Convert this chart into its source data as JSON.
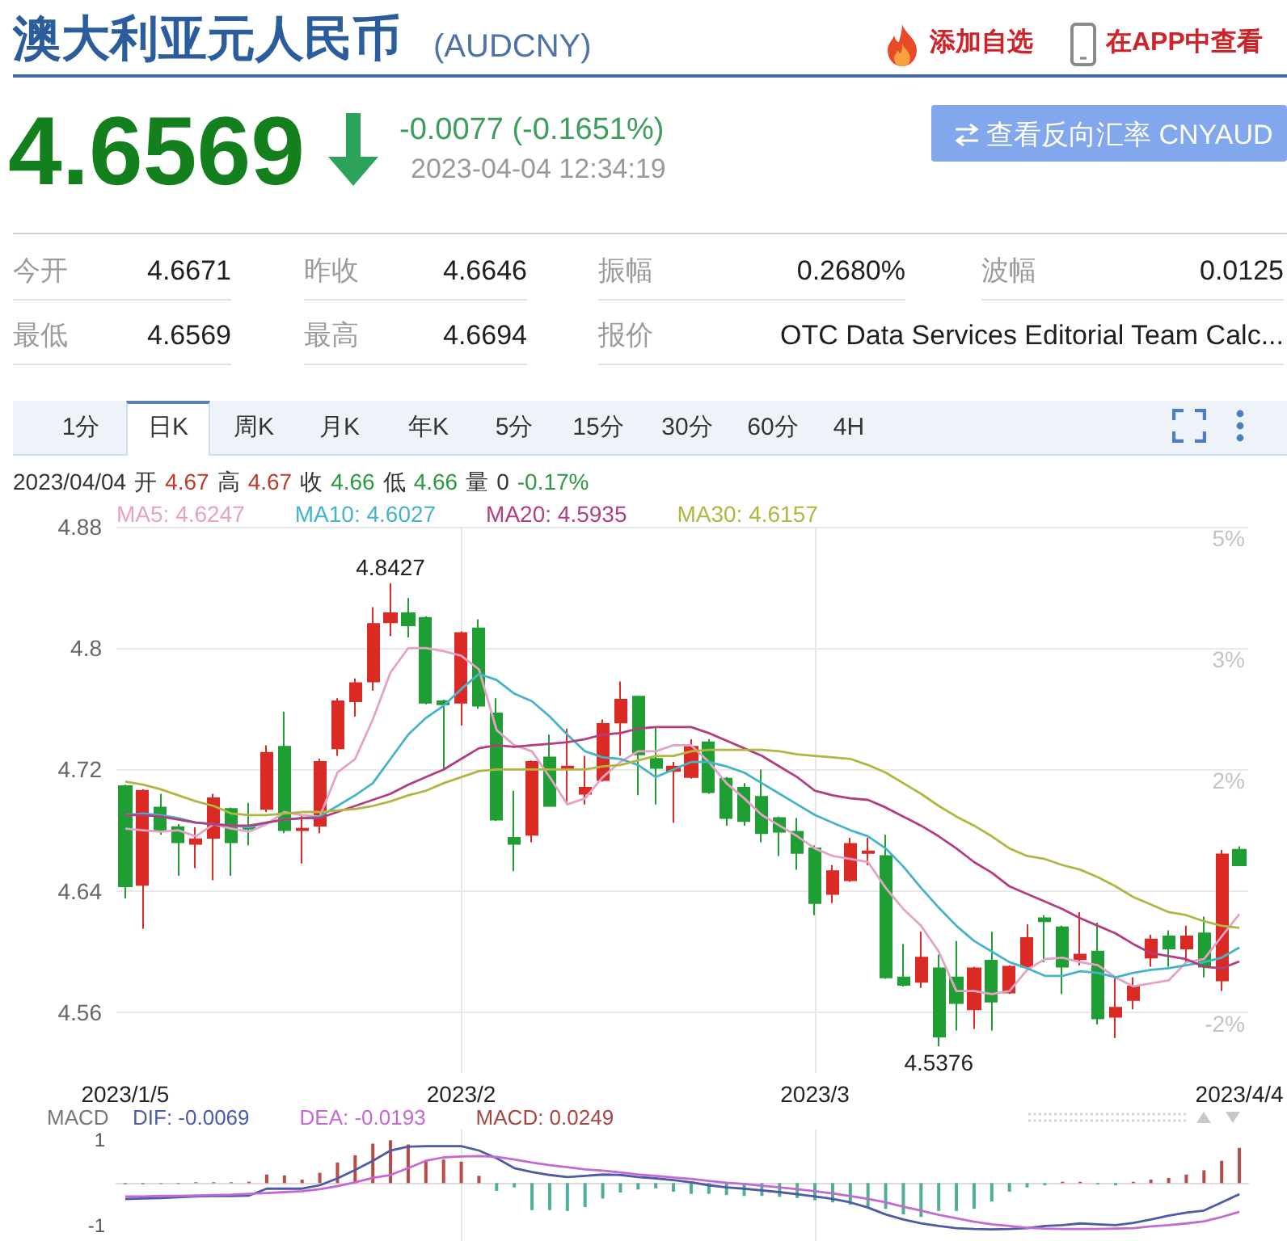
{
  "chart_data": [
    {
      "type": "other",
      "title": "澳大利亚元人民币",
      "subtitle": "(AUDCNY)",
      "annotations": [
        "添加自选",
        "在APP中查看",
        "4.6569",
        "-0.0077 (-0.1651%)",
        "2023-04-04 12:34:19",
        "查看反向汇率 CNYAUD",
        "今开",
        "4.6671",
        "昨收",
        "4.6646",
        "振幅",
        "0.2680%",
        "波幅",
        "0.0125",
        "最低",
        "4.6569",
        "最高",
        "4.6694",
        "报价",
        "OTC Data Services Editorial Team Calc...",
        "1分",
        "日K",
        "周K",
        "月K",
        "年K",
        "5分",
        "15分",
        "30分",
        "60分",
        "4H",
        "2023/04/04",
        "开",
        "4.67",
        "高",
        "4.67",
        "收",
        "4.66",
        "低",
        "4.66",
        "量",
        "0",
        "-0.17%"
      ]
    },
    {
      "type": "candlestick",
      "categories": [
        "2023/1/5",
        null,
        null,
        null,
        null,
        null,
        null,
        null,
        null,
        null,
        null,
        null,
        null,
        null,
        null,
        null,
        null,
        null,
        null,
        "2023/2",
        null,
        null,
        null,
        null,
        null,
        null,
        null,
        null,
        null,
        null,
        null,
        null,
        null,
        null,
        null,
        null,
        null,
        null,
        null,
        "2023/3",
        null,
        null,
        null,
        null,
        null,
        null,
        null,
        null,
        null,
        null,
        null,
        null,
        null,
        null,
        null,
        null,
        null,
        null,
        null,
        null,
        null,
        null,
        null,
        "2023/4/4"
      ],
      "ohlc": [
        [
          4.709,
          4.71,
          4.635,
          4.643
        ],
        [
          4.644,
          4.707,
          4.615,
          4.706
        ],
        [
          4.695,
          4.704,
          4.677,
          4.68
        ],
        [
          4.682,
          4.684,
          4.65,
          4.672
        ],
        [
          4.671,
          4.682,
          4.655,
          4.674
        ],
        [
          4.675,
          4.704,
          4.647,
          4.701
        ],
        [
          4.694,
          4.695,
          4.65,
          4.672
        ],
        [
          4.682,
          4.698,
          4.67,
          4.681
        ],
        [
          4.694,
          4.736,
          4.692,
          4.731
        ],
        [
          4.735,
          4.758,
          4.678,
          4.68
        ],
        [
          4.68,
          4.69,
          4.658,
          4.681
        ],
        [
          4.683,
          4.727,
          4.678,
          4.725
        ],
        [
          4.734,
          4.767,
          4.729,
          4.765
        ],
        [
          4.765,
          4.78,
          4.755,
          4.777
        ],
        [
          4.778,
          4.827,
          4.772,
          4.816
        ],
        [
          4.817,
          4.8427,
          4.808,
          4.823
        ],
        [
          4.823,
          4.833,
          4.807,
          4.815
        ],
        [
          4.82,
          4.821,
          4.763,
          4.764
        ],
        [
          4.765,
          4.766,
          4.72,
          4.763
        ],
        [
          4.764,
          4.811,
          4.749,
          4.81
        ],
        [
          4.813,
          4.819,
          4.76,
          4.762
        ],
        [
          4.757,
          4.767,
          4.686,
          4.687
        ],
        [
          4.675,
          4.706,
          4.653,
          4.671
        ],
        [
          4.677,
          4.726,
          4.672,
          4.725
        ],
        [
          4.728,
          4.743,
          4.696,
          4.696
        ],
        [
          4.721,
          4.747,
          4.698,
          4.722
        ],
        [
          4.704,
          4.729,
          4.697,
          4.708
        ],
        [
          4.713,
          4.753,
          4.712,
          4.75
        ],
        [
          4.751,
          4.778,
          4.729,
          4.766
        ],
        [
          4.768,
          4.768,
          4.703,
          4.73
        ],
        [
          4.727,
          4.748,
          4.697,
          4.721
        ],
        [
          4.719,
          4.725,
          4.685,
          4.722
        ],
        [
          4.715,
          4.74,
          4.714,
          4.735
        ],
        [
          4.738,
          4.74,
          4.704,
          4.705
        ],
        [
          4.714,
          4.715,
          4.683,
          4.688
        ],
        [
          4.708,
          4.711,
          4.683,
          4.686
        ],
        [
          4.702,
          4.72,
          4.672,
          4.678
        ],
        [
          4.688,
          4.689,
          4.663,
          4.679
        ],
        [
          4.679,
          4.688,
          4.654,
          4.665
        ],
        [
          4.668,
          4.67,
          4.624,
          4.632
        ],
        [
          4.638,
          4.657,
          4.632,
          4.653
        ],
        [
          4.647,
          4.675,
          4.646,
          4.671
        ],
        [
          4.665,
          4.675,
          4.657,
          4.666
        ],
        [
          4.663,
          4.677,
          4.582,
          4.583
        ],
        [
          4.583,
          4.605,
          4.577,
          4.578
        ],
        [
          4.58,
          4.613,
          4.576,
          4.596
        ],
        [
          4.589,
          4.598,
          4.5376,
          4.544
        ],
        [
          4.583,
          4.607,
          4.548,
          4.566
        ],
        [
          4.562,
          4.59,
          4.549,
          4.589
        ],
        [
          4.594,
          4.613,
          4.548,
          4.567
        ],
        [
          4.573,
          4.591,
          4.572,
          4.59
        ],
        [
          4.59,
          4.618,
          4.589,
          4.609
        ],
        [
          4.622,
          4.624,
          4.593,
          4.62
        ],
        [
          4.616,
          4.617,
          4.572,
          4.59
        ],
        [
          4.595,
          4.626,
          4.591,
          4.598
        ],
        [
          4.6,
          4.619,
          4.552,
          4.556
        ],
        [
          4.557,
          4.583,
          4.543,
          4.563
        ],
        [
          4.568,
          4.583,
          4.562,
          4.577
        ],
        [
          4.596,
          4.611,
          4.59,
          4.608
        ],
        [
          4.61,
          4.614,
          4.59,
          4.602
        ],
        [
          4.602,
          4.617,
          4.593,
          4.61
        ],
        [
          4.612,
          4.623,
          4.583,
          4.59
        ],
        [
          4.581,
          4.667,
          4.574,
          4.664
        ],
        [
          4.6671,
          4.6694,
          4.6569,
          4.6569
        ]
      ],
      "colors": [
        "#1f9f33",
        "#db2a23",
        "#1f9f33",
        "#1f9f33",
        "#db2a23",
        "#db2a23",
        "#1f9f33",
        "#1f9f33",
        "#db2a23",
        "#1f9f33",
        "#db2a23",
        "#db2a23",
        "#db2a23",
        "#db2a23",
        "#db2a23",
        "#db2a23",
        "#1f9f33",
        "#1f9f33",
        "#1f9f33",
        "#db2a23",
        "#1f9f33",
        "#1f9f33",
        "#1f9f33",
        "#db2a23",
        "#1f9f33",
        "#db2a23",
        "#db2a23",
        "#db2a23",
        "#db2a23",
        "#1f9f33",
        "#1f9f33",
        "#db2a23",
        "#db2a23",
        "#1f9f33",
        "#1f9f33",
        "#1f9f33",
        "#1f9f33",
        "#1f9f33",
        "#1f9f33",
        "#1f9f33",
        "#db2a23",
        "#db2a23",
        "#db2a23",
        "#1f9f33",
        "#1f9f33",
        "#db2a23",
        "#1f9f33",
        "#1f9f33",
        "#db2a23",
        "#1f9f33",
        "#db2a23",
        "#db2a23",
        "#1f9f33",
        "#1f9f33",
        "#db2a23",
        "#1f9f33",
        "#db2a23",
        "#db2a23",
        "#db2a23",
        "#1f9f33",
        "#db2a23",
        "#1f9f33",
        "#db2a23",
        "#1f9f33"
      ],
      "series": [
        {
          "type": "line",
          "name": "MA5: 4.6247",
          "color": "#e6a2c6",
          "values": [
            4.681,
            4.68,
            4.679,
            4.68,
            4.676,
            4.684,
            4.681,
            4.679,
            4.684,
            4.692,
            4.69,
            4.689,
            4.718,
            4.727,
            4.753,
            4.784,
            4.8,
            4.8,
            4.798,
            4.795,
            4.786,
            4.746,
            4.736,
            4.732,
            4.715,
            4.697,
            4.701,
            4.715,
            4.725,
            4.732,
            4.732,
            4.736,
            4.736,
            4.725,
            4.711,
            4.701,
            4.69,
            4.683,
            4.676,
            4.668,
            4.663,
            4.661,
            4.659,
            4.642,
            4.628,
            4.617,
            4.6,
            4.574,
            4.574,
            4.572,
            4.574,
            4.588,
            4.595,
            4.596,
            4.593,
            4.591,
            4.583,
            4.577,
            4.579,
            4.581,
            4.593,
            4.595,
            4.61,
            4.6247
          ]
        },
        {
          "type": "line",
          "name": "MA10: 4.6027",
          "color": "#45b3c9",
          "values": [
            4.69,
            4.691,
            4.69,
            4.688,
            4.685,
            4.684,
            4.683,
            4.682,
            4.685,
            4.687,
            4.688,
            4.689,
            4.696,
            4.703,
            4.711,
            4.727,
            4.743,
            4.754,
            4.762,
            4.773,
            4.783,
            4.779,
            4.77,
            4.765,
            4.755,
            4.743,
            4.732,
            4.728,
            4.727,
            4.723,
            4.715,
            4.72,
            4.725,
            4.725,
            4.722,
            4.718,
            4.711,
            4.704,
            4.697,
            4.69,
            4.685,
            4.68,
            4.676,
            4.668,
            4.656,
            4.642,
            4.629,
            4.617,
            4.607,
            4.6,
            4.593,
            4.589,
            4.584,
            4.584,
            4.587,
            4.586,
            4.583,
            4.586,
            4.588,
            4.589,
            4.591,
            4.593,
            4.596,
            4.6027
          ]
        },
        {
          "type": "line",
          "name": "MA20: 4.5935",
          "color": "#b33d80",
          "values": [
            4.69,
            4.69,
            4.689,
            4.687,
            4.685,
            4.684,
            4.683,
            4.683,
            4.685,
            4.687,
            4.688,
            4.688,
            4.692,
            4.696,
            4.7,
            4.704,
            4.71,
            4.715,
            4.72,
            4.727,
            4.734,
            4.736,
            4.735,
            4.736,
            4.737,
            4.738,
            4.74,
            4.743,
            4.744,
            4.747,
            4.748,
            4.748,
            4.748,
            4.744,
            4.739,
            4.734,
            4.729,
            4.722,
            4.715,
            4.706,
            4.703,
            4.701,
            4.7,
            4.695,
            4.689,
            4.683,
            4.676,
            4.668,
            4.659,
            4.652,
            4.643,
            4.638,
            4.633,
            4.628,
            4.622,
            4.617,
            4.612,
            4.605,
            4.599,
            4.597,
            4.595,
            4.59,
            4.589,
            4.5935
          ]
        },
        {
          "type": "line",
          "name": "MA30: 4.6157",
          "color": "#b1b640",
          "values": [
            4.712,
            4.71,
            4.707,
            4.703,
            4.699,
            4.696,
            4.691,
            4.69,
            4.69,
            4.691,
            4.692,
            4.692,
            4.693,
            4.694,
            4.696,
            4.699,
            4.703,
            4.706,
            4.711,
            4.715,
            4.719,
            4.72,
            4.72,
            4.72,
            4.72,
            4.72,
            4.72,
            4.722,
            4.723,
            4.726,
            4.729,
            4.729,
            4.732,
            4.733,
            4.733,
            4.733,
            4.733,
            4.732,
            4.73,
            4.729,
            4.728,
            4.727,
            4.723,
            4.718,
            4.711,
            4.704,
            4.696,
            4.689,
            4.683,
            4.676,
            4.668,
            4.663,
            4.661,
            4.657,
            4.654,
            4.649,
            4.643,
            4.636,
            4.631,
            4.626,
            4.624,
            4.62,
            4.617,
            4.6157
          ]
        }
      ],
      "ylim": [
        4.52,
        4.88
      ],
      "yticks": [
        4.56,
        4.64,
        4.72,
        4.8,
        4.88
      ],
      "y2lim": [
        -2.69,
        5.06
      ],
      "y2ticks": [
        {
          "value": -1.83,
          "label": "-2%"
        },
        {
          "value": -0.11,
          "label": null
        },
        {
          "value": 1.62,
          "label": "2%"
        },
        {
          "value": 3.34,
          "label": "3%"
        },
        {
          "value": 5.06,
          "label": "5%"
        }
      ],
      "grid": true,
      "legend": "top left",
      "marker": "none",
      "tick_labels": "y",
      "annotations": [
        "4.8427",
        "4.5376"
      ]
    },
    {
      "type": "bar",
      "title": "MACD",
      "categories": [
        "2023/1/5",
        null,
        null,
        null,
        null,
        null,
        null,
        null,
        null,
        null,
        null,
        null,
        null,
        null,
        null,
        null,
        null,
        null,
        null,
        "2023/2",
        null,
        null,
        null,
        null,
        null,
        null,
        null,
        null,
        null,
        null,
        null,
        null,
        null,
        null,
        null,
        null,
        null,
        null,
        null,
        "2023/3",
        null,
        null,
        null,
        null,
        null,
        null,
        null,
        null,
        null,
        null,
        null,
        null,
        null,
        null,
        null,
        null,
        null,
        null,
        null,
        null,
        null,
        null,
        null,
        "2023/4/4"
      ],
      "series": [
        {
          "type": "line",
          "name": "DIF: -0.0069",
          "color": "#4b5ba8",
          "values": [
            -0.37,
            -0.36,
            -0.35,
            -0.33,
            -0.31,
            -0.3,
            -0.3,
            -0.29,
            -0.13,
            -0.13,
            -0.13,
            -0.05,
            0.11,
            0.31,
            0.52,
            0.76,
            0.85,
            0.86,
            0.86,
            0.86,
            0.76,
            0.58,
            0.35,
            0.26,
            0.19,
            0.14,
            0.17,
            0.2,
            0.19,
            0.14,
            0.11,
            0.07,
            0.02,
            -0.05,
            -0.1,
            -0.13,
            -0.17,
            -0.21,
            -0.26,
            -0.31,
            -0.37,
            -0.45,
            -0.57,
            -0.73,
            -0.85,
            -0.94,
            -1.0,
            -1.05,
            -1.07,
            -1.08,
            -1.07,
            -1.05,
            -1.0,
            -0.98,
            -0.94,
            -0.96,
            -0.98,
            -0.93,
            -0.85,
            -0.76,
            -0.69,
            -0.64,
            -0.45,
            -0.26
          ]
        },
        {
          "type": "line",
          "name": "DEA: -0.0193",
          "color": "#c468d4",
          "values": [
            -0.31,
            -0.31,
            -0.3,
            -0.3,
            -0.29,
            -0.28,
            -0.27,
            -0.25,
            -0.23,
            -0.21,
            -0.19,
            -0.14,
            -0.07,
            0.02,
            0.12,
            0.19,
            0.35,
            0.52,
            0.6,
            0.62,
            0.63,
            0.61,
            0.55,
            0.48,
            0.42,
            0.37,
            0.32,
            0.29,
            0.25,
            0.2,
            0.17,
            0.13,
            0.1,
            0.05,
            0.01,
            -0.02,
            -0.06,
            -0.1,
            -0.14,
            -0.19,
            -0.24,
            -0.3,
            -0.37,
            -0.45,
            -0.55,
            -0.64,
            -0.74,
            -0.82,
            -0.9,
            -0.96,
            -1.0,
            -1.04,
            -1.06,
            -1.07,
            -1.07,
            -1.07,
            -1.06,
            -1.05,
            -1.01,
            -0.98,
            -0.94,
            -0.89,
            -0.79,
            -0.67
          ]
        },
        {
          "type": "bar",
          "name": "MACD: 0.0249",
          "color": "#a8453f",
          "values": [
            -0.03,
            -0.03,
            -0.02,
            -0.02,
            0.02,
            0.02,
            0.02,
            0.03,
            0.2,
            0.18,
            0.08,
            0.24,
            0.48,
            0.65,
            0.92,
            1.0,
            0.9,
            0.54,
            0.55,
            0.5,
            0.17,
            -0.18,
            -0.1,
            -0.63,
            -0.63,
            -0.65,
            -0.56,
            -0.36,
            -0.22,
            -0.15,
            -0.12,
            -0.2,
            -0.25,
            -0.25,
            -0.28,
            -0.3,
            -0.3,
            -0.32,
            -0.35,
            -0.4,
            -0.45,
            -0.5,
            -0.55,
            -0.6,
            -0.73,
            -0.79,
            -0.65,
            -0.65,
            -0.6,
            -0.43,
            -0.2,
            -0.1,
            -0.05,
            0.03,
            0.03,
            -0.03,
            -0.05,
            0.03,
            0.08,
            0.12,
            0.2,
            0.3,
            0.52,
            0.82
          ],
          "colors": [
            "#4fae97",
            "#4fae97",
            "#4fae97",
            "#4fae97",
            "#b94a44",
            "#b94a44",
            "#b94a44",
            "#b94a44",
            "#b94a44",
            "#b94a44",
            "#b94a44",
            "#b94a44",
            "#b94a44",
            "#b94a44",
            "#b94a44",
            "#b94a44",
            "#b94a44",
            "#b94a44",
            "#b94a44",
            "#b94a44",
            "#b94a44",
            "#4fae97",
            "#4fae97",
            "#4fae97",
            "#4fae97",
            "#4fae97",
            "#4fae97",
            "#4fae97",
            "#4fae97",
            "#4fae97",
            "#4fae97",
            "#4fae97",
            "#4fae97",
            "#4fae97",
            "#4fae97",
            "#4fae97",
            "#4fae97",
            "#4fae97",
            "#4fae97",
            "#4fae97",
            "#4fae97",
            "#4fae97",
            "#4fae97",
            "#4fae97",
            "#4fae97",
            "#4fae97",
            "#4fae97",
            "#4fae97",
            "#4fae97",
            "#4fae97",
            "#4fae97",
            "#4fae97",
            "#4fae97",
            "#b94a44",
            "#b94a44",
            "#4fae97",
            "#4fae97",
            "#b94a44",
            "#b94a44",
            "#b94a44",
            "#b94a44",
            "#b94a44",
            "#b94a44",
            "#b94a44"
          ]
        }
      ],
      "ylim": [
        -1.35,
        1.25
      ],
      "yticks": [
        -1,
        1
      ],
      "grid": "x",
      "legend": "top left",
      "marker": "none"
    }
  ]
}
